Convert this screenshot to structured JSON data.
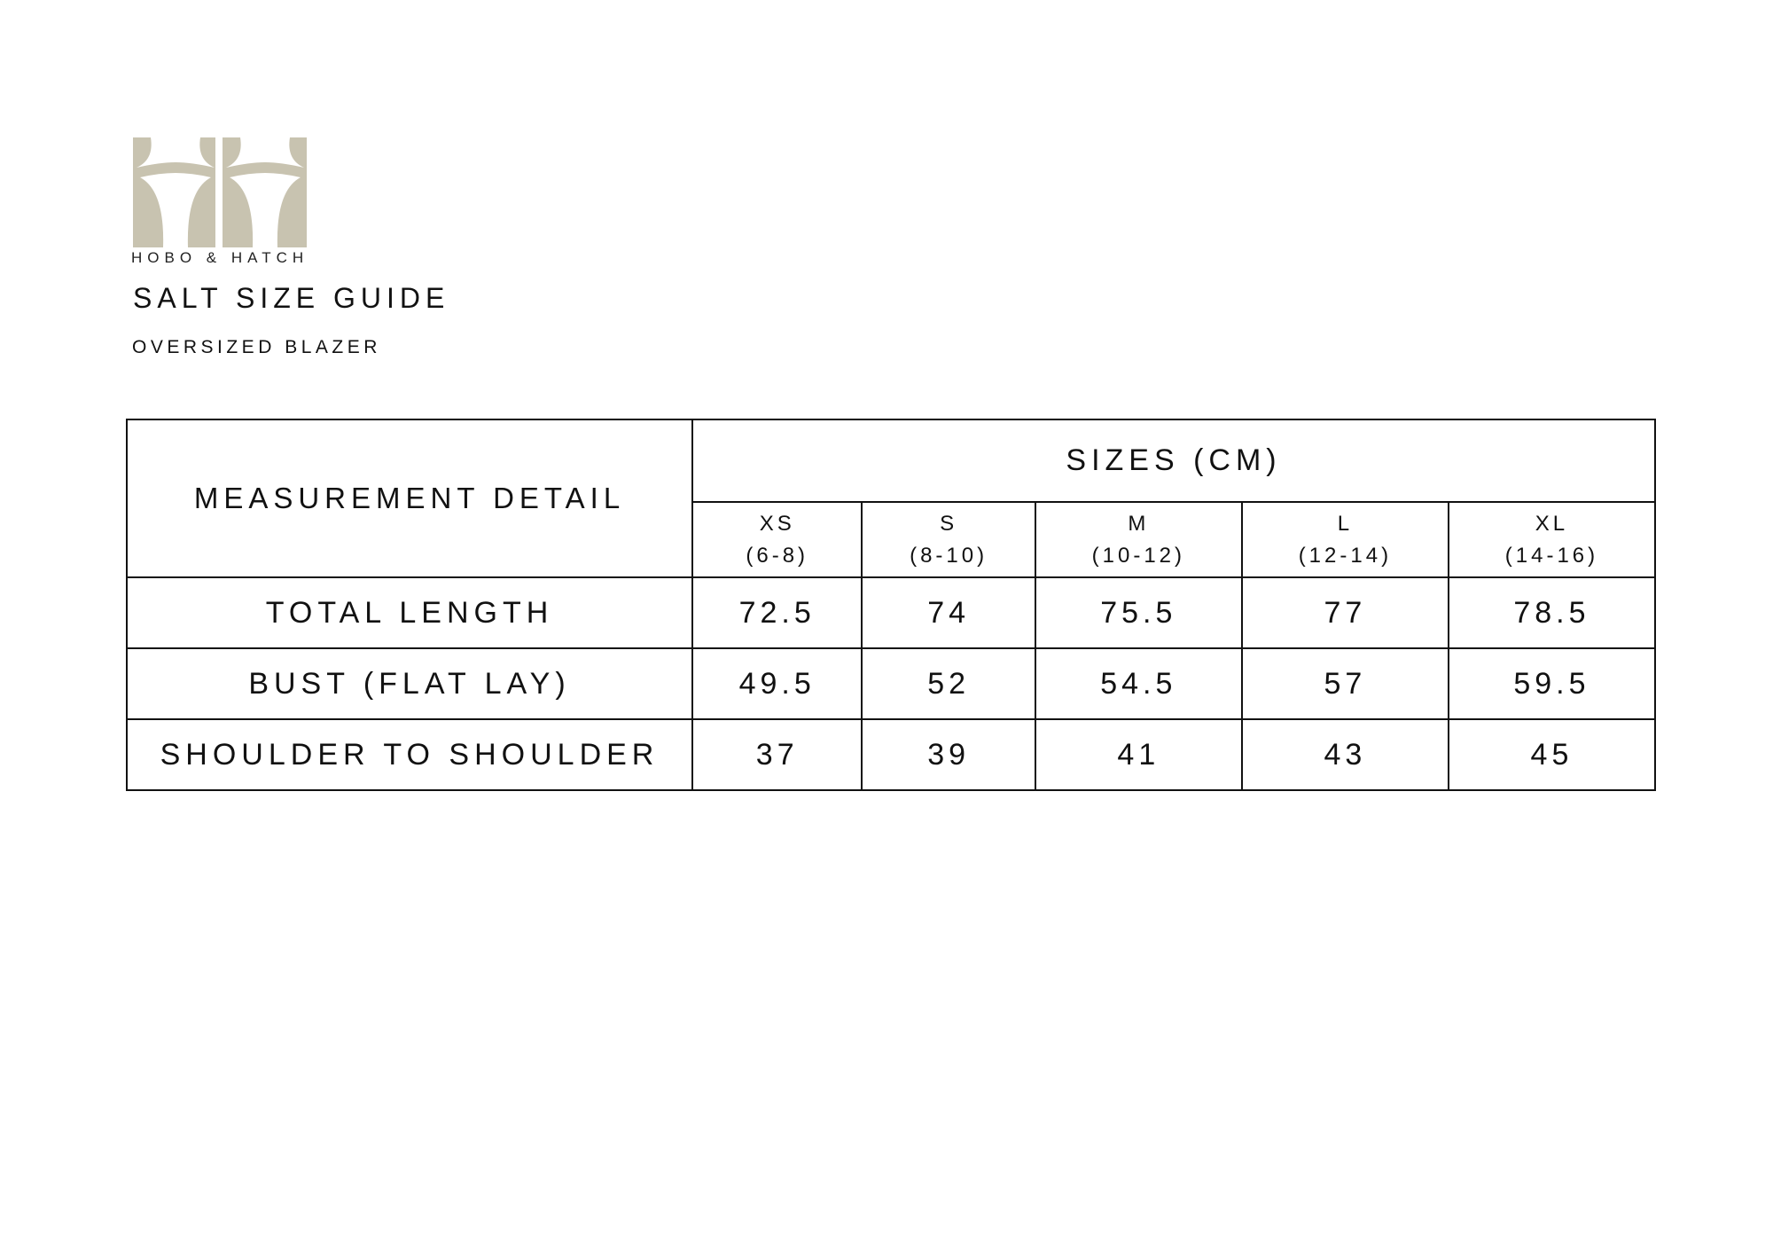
{
  "brand": {
    "name": "HOBO & HATCH",
    "logo_color": "#c8c3b0"
  },
  "title": "SALT SIZE GUIDE",
  "subtitle": "OVERSIZED BLAZER",
  "table": {
    "measurement_header": "MEASUREMENT DETAIL",
    "sizes_header": "SIZES (CM)",
    "sizes": [
      {
        "label": "XS",
        "range": "(6-8)"
      },
      {
        "label": "S",
        "range": "(8-10)"
      },
      {
        "label": "M",
        "range": "(10-12)"
      },
      {
        "label": "L",
        "range": "(12-14)"
      },
      {
        "label": "XL",
        "range": "(14-16)"
      }
    ],
    "rows": [
      {
        "label": "TOTAL LENGTH",
        "values": [
          "72.5",
          "74",
          "75.5",
          "77",
          "78.5"
        ]
      },
      {
        "label": "BUST (FLAT LAY)",
        "values": [
          "49.5",
          "52",
          "54.5",
          "57",
          "59.5"
        ]
      },
      {
        "label": "SHOULDER TO SHOULDER",
        "values": [
          "37",
          "39",
          "41",
          "43",
          "45"
        ]
      }
    ]
  }
}
